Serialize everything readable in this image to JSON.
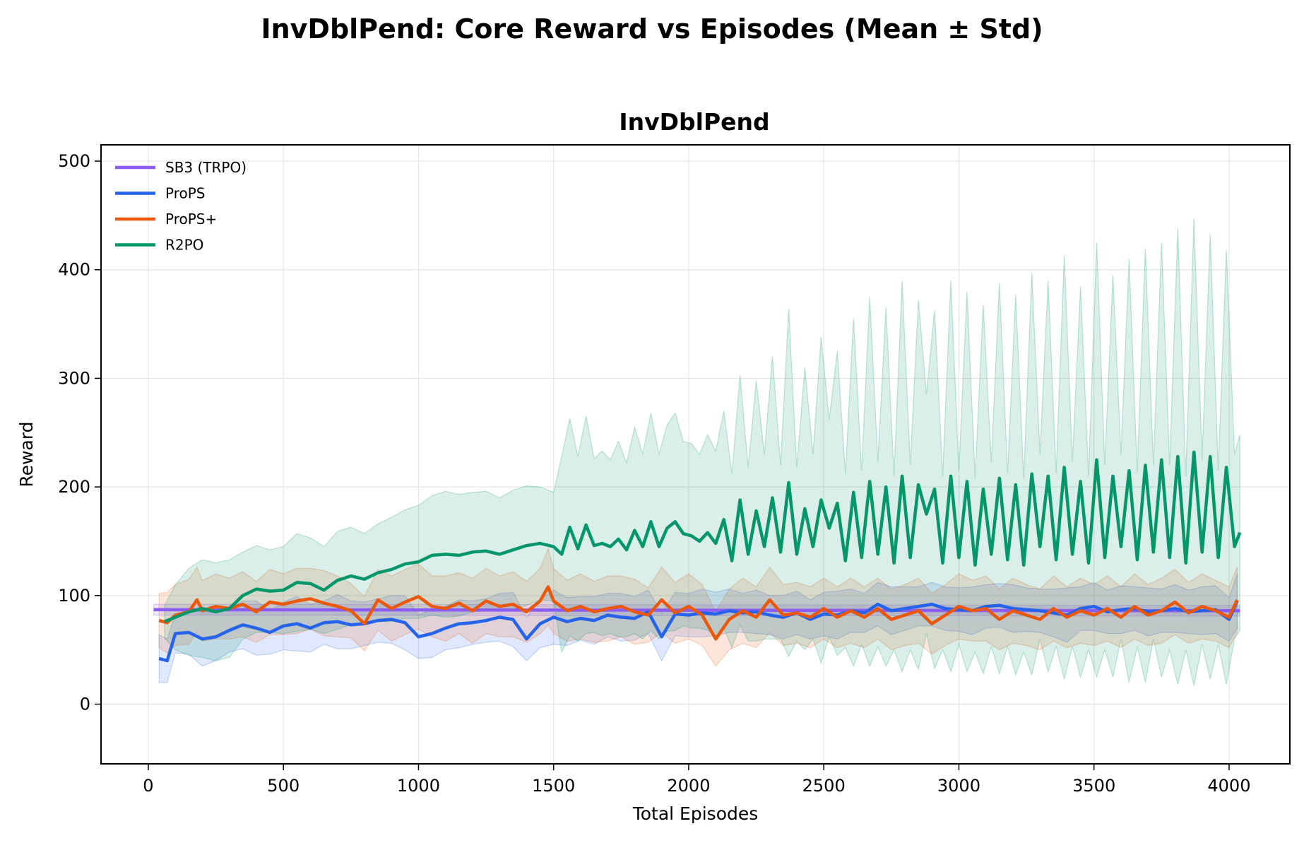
{
  "figure": {
    "suptitle": "InvDblPend: Core Reward vs Episodes (Mean ± Std)"
  },
  "chart_data": {
    "type": "line",
    "title": "InvDblPend",
    "xlabel": "Total Episodes",
    "ylabel": "Reward",
    "xlim": [
      -175,
      4225
    ],
    "ylim": [
      -55,
      515
    ],
    "xticks": [
      0,
      500,
      1000,
      1500,
      2000,
      2500,
      3000,
      3500,
      4000
    ],
    "yticks": [
      0,
      100,
      200,
      300,
      400,
      500
    ],
    "grid": true,
    "legend_position": "top-left",
    "series": [
      {
        "name": "SB3 (TRPO)",
        "color": "#8b5cf6",
        "x": [
          20,
          4040
        ],
        "mean": [
          87,
          86
        ],
        "std": [
          5,
          5
        ]
      },
      {
        "name": "ProPS",
        "color": "#2563eb",
        "x": [
          40,
          70,
          100,
          150,
          200,
          250,
          300,
          350,
          400,
          450,
          500,
          550,
          600,
          650,
          700,
          750,
          800,
          850,
          900,
          950,
          1000,
          1050,
          1100,
          1150,
          1200,
          1250,
          1300,
          1350,
          1400,
          1450,
          1500,
          1550,
          1600,
          1650,
          1700,
          1750,
          1800,
          1850,
          1900,
          1950,
          2000,
          2050,
          2100,
          2150,
          2200,
          2250,
          2300,
          2350,
          2400,
          2450,
          2500,
          2550,
          2600,
          2650,
          2700,
          2750,
          2800,
          2850,
          2900,
          2950,
          3000,
          3050,
          3100,
          3150,
          3200,
          3250,
          3300,
          3350,
          3400,
          3450,
          3500,
          3550,
          3600,
          3650,
          3700,
          3750,
          3800,
          3850,
          3900,
          3950,
          4000,
          4030
        ],
        "mean": [
          42,
          40,
          65,
          66,
          60,
          62,
          68,
          73,
          70,
          66,
          72,
          74,
          70,
          75,
          76,
          73,
          74,
          77,
          78,
          75,
          62,
          65,
          70,
          74,
          75,
          77,
          80,
          78,
          60,
          74,
          80,
          76,
          79,
          77,
          82,
          80,
          79,
          85,
          62,
          83,
          82,
          84,
          83,
          86,
          84,
          85,
          82,
          80,
          84,
          78,
          83,
          82,
          86,
          84,
          92,
          86,
          88,
          90,
          92,
          88,
          87,
          86,
          90,
          91,
          88,
          87,
          86,
          84,
          82,
          88,
          90,
          85,
          87,
          88,
          85,
          86,
          88,
          85,
          86,
          87,
          78,
          95
        ],
        "std": [
          22,
          20,
          18,
          20,
          25,
          22,
          20,
          22,
          25,
          20,
          22,
          25,
          22,
          20,
          25,
          22,
          20,
          20,
          22,
          25,
          20,
          22,
          20,
          22,
          20,
          20,
          22,
          25,
          20,
          22,
          25,
          22,
          20,
          22,
          20,
          22,
          20,
          20,
          22,
          20,
          20,
          22,
          20,
          20,
          18,
          20,
          18,
          20,
          20,
          18,
          20,
          22,
          20,
          18,
          20,
          22,
          20,
          18,
          20,
          20,
          20,
          22,
          20,
          20,
          22,
          20,
          20,
          22,
          25,
          20,
          22,
          20,
          22,
          20,
          22,
          20,
          22,
          20,
          22,
          22,
          20,
          25
        ]
      },
      {
        "name": "ProPS+",
        "color": "#ea580c",
        "x": [
          40,
          70,
          100,
          150,
          180,
          200,
          250,
          300,
          350,
          400,
          450,
          500,
          550,
          600,
          650,
          700,
          750,
          800,
          850,
          900,
          950,
          1000,
          1050,
          1100,
          1150,
          1200,
          1250,
          1300,
          1350,
          1400,
          1450,
          1480,
          1500,
          1550,
          1600,
          1650,
          1700,
          1750,
          1800,
          1850,
          1900,
          1950,
          2000,
          2050,
          2100,
          2150,
          2200,
          2250,
          2300,
          2350,
          2400,
          2450,
          2500,
          2550,
          2600,
          2650,
          2700,
          2750,
          2800,
          2850,
          2900,
          2950,
          3000,
          3050,
          3100,
          3150,
          3200,
          3250,
          3300,
          3350,
          3400,
          3450,
          3500,
          3550,
          3600,
          3650,
          3700,
          3750,
          3800,
          3850,
          3900,
          3950,
          4000,
          4030
        ],
        "mean": [
          77,
          75,
          82,
          85,
          96,
          86,
          90,
          88,
          92,
          85,
          94,
          92,
          95,
          97,
          93,
          90,
          86,
          74,
          96,
          88,
          94,
          99,
          90,
          88,
          93,
          86,
          95,
          90,
          92,
          85,
          95,
          108,
          95,
          86,
          90,
          85,
          88,
          90,
          85,
          82,
          96,
          84,
          90,
          82,
          60,
          78,
          86,
          80,
          96,
          82,
          84,
          80,
          88,
          80,
          86,
          80,
          88,
          78,
          82,
          86,
          74,
          82,
          90,
          86,
          88,
          78,
          86,
          82,
          78,
          88,
          80,
          86,
          82,
          88,
          80,
          90,
          82,
          86,
          94,
          84,
          90,
          86,
          80,
          96
        ],
        "std": [
          25,
          28,
          28,
          30,
          30,
          28,
          30,
          28,
          30,
          28,
          30,
          28,
          30,
          28,
          30,
          28,
          25,
          25,
          28,
          30,
          30,
          30,
          28,
          30,
          28,
          30,
          30,
          28,
          30,
          28,
          30,
          35,
          30,
          28,
          30,
          28,
          30,
          28,
          30,
          25,
          30,
          28,
          30,
          28,
          25,
          28,
          30,
          28,
          30,
          28,
          28,
          28,
          28,
          28,
          30,
          28,
          28,
          28,
          28,
          30,
          28,
          28,
          30,
          28,
          30,
          28,
          30,
          28,
          28,
          30,
          28,
          30,
          28,
          30,
          28,
          30,
          28,
          30,
          30,
          28,
          30,
          28,
          28,
          30
        ]
      },
      {
        "name": "R2PO",
        "color": "#059669",
        "x": [
          60,
          100,
          150,
          200,
          250,
          300,
          350,
          400,
          450,
          500,
          550,
          600,
          650,
          700,
          750,
          800,
          850,
          900,
          950,
          1000,
          1050,
          1100,
          1150,
          1200,
          1250,
          1300,
          1350,
          1400,
          1450,
          1500,
          1530,
          1560,
          1590,
          1620,
          1650,
          1680,
          1710,
          1740,
          1770,
          1800,
          1830,
          1860,
          1890,
          1920,
          1950,
          1980,
          2010,
          2040,
          2070,
          2100,
          2130,
          2160,
          2190,
          2220,
          2250,
          2280,
          2310,
          2340,
          2370,
          2400,
          2430,
          2460,
          2490,
          2520,
          2550,
          2580,
          2610,
          2640,
          2670,
          2700,
          2730,
          2760,
          2790,
          2820,
          2850,
          2880,
          2910,
          2940,
          2970,
          3000,
          3030,
          3060,
          3090,
          3120,
          3150,
          3180,
          3210,
          3240,
          3270,
          3300,
          3330,
          3360,
          3390,
          3420,
          3450,
          3480,
          3510,
          3540,
          3570,
          3600,
          3630,
          3660,
          3690,
          3720,
          3750,
          3780,
          3810,
          3840,
          3870,
          3900,
          3930,
          3960,
          3990,
          4020,
          4040
        ],
        "mean": [
          76,
          80,
          85,
          88,
          85,
          88,
          100,
          106,
          104,
          105,
          112,
          111,
          105,
          114,
          118,
          115,
          121,
          124,
          129,
          131,
          137,
          138,
          137,
          140,
          141,
          138,
          142,
          146,
          148,
          145,
          138,
          163,
          143,
          165,
          146,
          148,
          145,
          152,
          142,
          160,
          145,
          168,
          145,
          162,
          168,
          157,
          155,
          150,
          158,
          148,
          170,
          132,
          188,
          138,
          178,
          145,
          190,
          140,
          204,
          138,
          180,
          145,
          188,
          162,
          185,
          132,
          195,
          135,
          205,
          138,
          200,
          130,
          210,
          135,
          202,
          175,
          198,
          130,
          210,
          135,
          205,
          128,
          198,
          138,
          208,
          133,
          202,
          128,
          212,
          145,
          210,
          133,
          218,
          138,
          205,
          130,
          225,
          135,
          210,
          145,
          215,
          133,
          220,
          140,
          225,
          135,
          228,
          130,
          232,
          140,
          228,
          135,
          218,
          145,
          158
        ],
        "std": [
          15,
          30,
          40,
          45,
          45,
          45,
          40,
          40,
          38,
          40,
          45,
          42,
          40,
          45,
          45,
          42,
          45,
          48,
          50,
          52,
          55,
          58,
          56,
          55,
          55,
          52,
          55,
          55,
          52,
          50,
          90,
          100,
          85,
          100,
          80,
          85,
          80,
          90,
          80,
          95,
          85,
          100,
          85,
          95,
          100,
          85,
          85,
          80,
          90,
          85,
          100,
          80,
          115,
          80,
          120,
          85,
          130,
          80,
          160,
          80,
          130,
          85,
          150,
          100,
          140,
          80,
          160,
          80,
          170,
          85,
          165,
          80,
          180,
          85,
          170,
          110,
          165,
          80,
          180,
          80,
          175,
          80,
          170,
          85,
          180,
          80,
          175,
          80,
          185,
          85,
          180,
          80,
          195,
          85,
          180,
          80,
          200,
          85,
          185,
          85,
          195,
          80,
          200,
          80,
          200,
          85,
          210,
          80,
          215,
          85,
          205,
          80,
          200,
          85,
          90
        ]
      }
    ]
  }
}
